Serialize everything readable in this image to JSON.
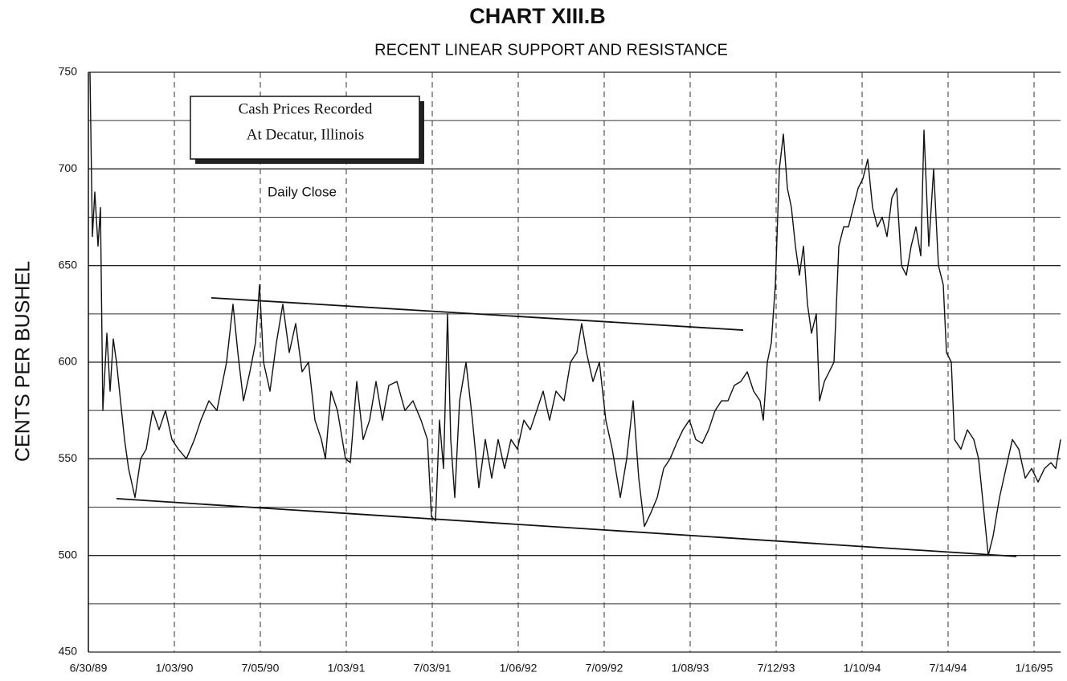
{
  "chart_data": {
    "type": "line",
    "title": "CHART  XIII.B",
    "subtitle": "RECENT LINEAR SUPPORT AND RESISTANCE",
    "y_label": "CENTS PER BUSHEL",
    "box_text": [
      "Cash  Prices  Recorded",
      "At  Decatur, Illinois"
    ],
    "x": [
      2,
      5,
      8,
      12,
      15,
      18,
      23,
      27,
      31,
      35,
      40,
      45,
      50,
      58,
      65,
      72,
      80,
      88,
      96,
      104,
      112,
      122,
      132,
      140,
      150,
      160,
      172,
      180,
      186,
      193,
      201,
      208,
      213,
      218,
      226,
      234,
      242,
      250,
      258,
      266,
      274,
      282,
      290,
      295,
      302,
      310,
      320,
      326,
      334,
      342,
      350,
      358,
      366,
      374,
      384,
      394,
      404,
      414,
      422,
      427,
      432,
      437,
      442,
      447,
      451,
      456,
      462,
      470,
      478,
      486,
      494,
      502,
      510,
      518,
      526,
      534,
      542,
      550,
      558,
      566,
      574,
      582,
      592,
      600,
      608,
      614,
      620,
      628,
      636,
      644,
      652,
      658,
      662,
      670,
      678,
      685,
      692,
      700,
      708,
      716,
      724,
      732,
      740,
      748,
      756,
      764,
      772,
      780,
      788,
      796,
      804,
      812,
      820,
      828,
      836,
      840,
      845,
      850,
      855,
      860,
      865,
      870,
      875,
      880,
      885,
      890,
      895,
      900,
      906,
      910,
      916,
      922,
      928,
      934,
      940,
      946,
      952,
      958,
      964,
      970,
      976,
      982,
      988,
      994,
      1000,
      1006,
      1012,
      1018,
      1024,
      1030,
      1036,
      1040,
      1046,
      1052,
      1058,
      1064,
      1068,
      1074,
      1078,
      1086,
      1094,
      1102,
      1108,
      1114,
      1120,
      1126,
      1134,
      1142,
      1150,
      1158,
      1166,
      1174,
      1182,
      1190,
      1198,
      1204,
      1210
    ],
    "series": [
      {
        "name": "Daily  Close",
        "color": "#111111",
        "values": [
          750,
          665,
          688,
          660,
          680,
          575,
          615,
          585,
          612,
          600,
          580,
          560,
          545,
          530,
          550,
          555,
          575,
          565,
          575,
          560,
          555,
          550,
          560,
          570,
          580,
          575,
          600,
          630,
          605,
          580,
          595,
          610,
          640,
          600,
          585,
          610,
          630,
          605,
          620,
          595,
          600,
          570,
          560,
          550,
          585,
          575,
          550,
          548,
          590,
          560,
          570,
          590,
          570,
          588,
          590,
          575,
          580,
          570,
          560,
          520,
          518,
          570,
          545,
          625,
          560,
          530,
          580,
          600,
          570,
          535,
          560,
          540,
          560,
          545,
          560,
          555,
          570,
          565,
          575,
          585,
          570,
          585,
          580,
          600,
          605,
          620,
          605,
          590,
          600,
          570,
          555,
          540,
          530,
          550,
          580,
          540,
          515,
          522,
          530,
          545,
          550,
          558,
          565,
          570,
          560,
          558,
          565,
          575,
          580,
          580,
          588,
          590,
          595,
          585,
          580,
          570,
          600,
          610,
          640,
          700,
          718,
          690,
          680,
          660,
          645,
          660,
          630,
          615,
          625,
          580,
          590,
          595,
          600,
          660,
          670,
          670,
          680,
          690,
          695,
          705,
          680,
          670,
          675,
          665,
          685,
          690,
          650,
          645,
          660,
          670,
          655,
          720,
          660,
          700,
          650,
          640,
          605,
          600,
          560,
          555,
          565,
          560,
          550,
          525,
          500,
          510,
          530,
          545,
          560,
          555,
          540,
          545,
          538,
          545,
          548,
          545,
          560
        ]
      }
    ],
    "trendlines": [
      {
        "x": [
          153,
          815
        ],
        "y": [
          633.3,
          616.6
        ]
      },
      {
        "x": [
          35,
          1155
        ],
        "y": [
          529.4,
          499.5
        ]
      }
    ],
    "xlim": [
      0,
      1210
    ],
    "xticks": [
      {
        "value": 0,
        "label": "6/30/89"
      },
      {
        "value": 107,
        "label": "1/03/90"
      },
      {
        "value": 214,
        "label": "7/05/90"
      },
      {
        "value": 321,
        "label": "1/03/91"
      },
      {
        "value": 428,
        "label": "7/03/91"
      },
      {
        "value": 535,
        "label": "1/06/92"
      },
      {
        "value": 642,
        "label": "7/09/92"
      },
      {
        "value": 749,
        "label": "1/08/93"
      },
      {
        "value": 856,
        "label": "7/12/93"
      },
      {
        "value": 963,
        "label": "1/10/94"
      },
      {
        "value": 1070,
        "label": "7/14/94"
      },
      {
        "value": 1177,
        "label": "1/16/95"
      }
    ],
    "ylim": [
      450,
      750
    ],
    "yticks": [
      450,
      500,
      550,
      600,
      650,
      700,
      750
    ],
    "minor_yticks": [
      475,
      525,
      575,
      625,
      675,
      725
    ],
    "grid": true
  }
}
